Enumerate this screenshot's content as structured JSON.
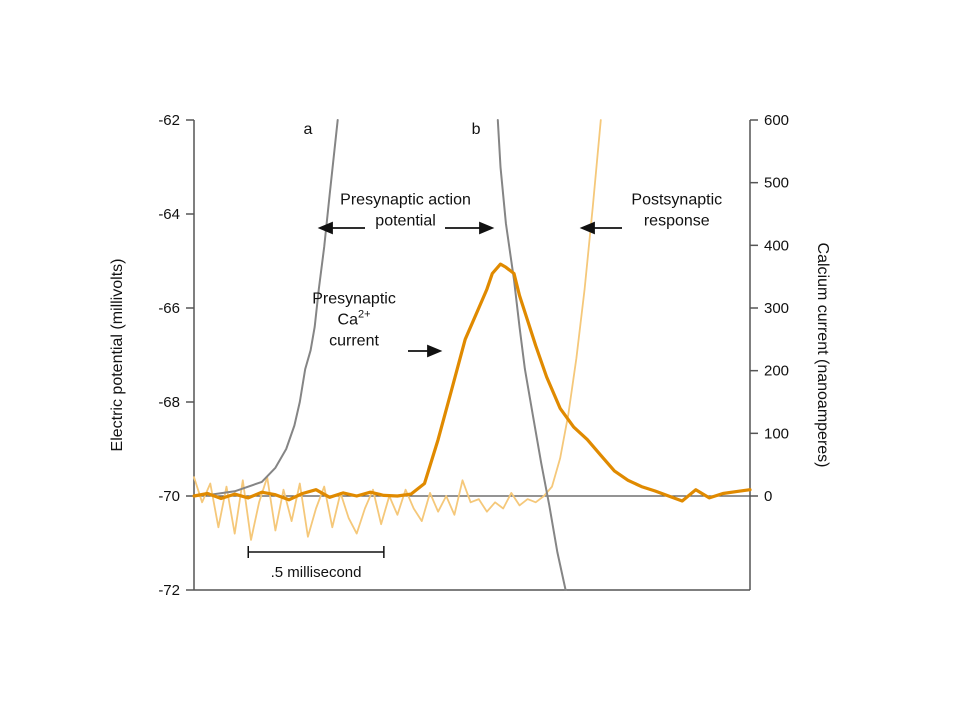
{
  "chart_data": {
    "type": "line",
    "title": "",
    "ylabel_left": "Electric potential (millivolts)",
    "ylabel_right": "Calcium current (nanoamperes)",
    "xlabel": "",
    "xlim_ms": [
      0,
      2.05
    ],
    "ylim_left": [
      -72,
      -62
    ],
    "ylim_right": [
      -150,
      600
    ],
    "left_ticks": [
      -62,
      -64,
      -66,
      -68,
      -70,
      -72
    ],
    "right_ticks": [
      600,
      500,
      400,
      300,
      200,
      100,
      0
    ],
    "grid": false,
    "zero_line": true,
    "scale_bar": {
      "label": ".5 millisecond",
      "start_ms": 0.2,
      "length_ms": 0.5
    },
    "colors": {
      "action_potential": "#858585",
      "ca_current": "#e08a00",
      "postsynaptic": "#f5c87a",
      "axes": "#555555"
    },
    "series": [
      {
        "label": "a",
        "axis": "left",
        "x": [
          0.05,
          0.15,
          0.25,
          0.3,
          0.34,
          0.37,
          0.39,
          0.41,
          0.43,
          0.445,
          0.46,
          0.48,
          0.5,
          0.53
        ],
        "y": [
          -69.98,
          -69.9,
          -69.7,
          -69.4,
          -69.0,
          -68.5,
          -68.0,
          -67.3,
          -66.9,
          -66.4,
          -65.6,
          -64.7,
          -63.6,
          -62.0
        ]
      },
      {
        "label": "b",
        "axis": "left",
        "x": [
          1.12,
          1.13,
          1.15,
          1.18,
          1.2,
          1.22,
          1.25,
          1.28,
          1.31,
          1.34,
          1.37
        ],
        "y": [
          -62.0,
          -63.0,
          -64.2,
          -65.4,
          -66.4,
          -67.3,
          -68.3,
          -69.3,
          -70.2,
          -71.2,
          -72.0
        ]
      },
      {
        "label": "Presynaptic Ca2+ current",
        "axis": "right",
        "x": [
          0.0,
          0.05,
          0.1,
          0.15,
          0.2,
          0.25,
          0.3,
          0.35,
          0.4,
          0.45,
          0.5,
          0.55,
          0.6,
          0.65,
          0.7,
          0.75,
          0.8,
          0.85,
          0.9,
          0.95,
          1.0,
          1.05,
          1.08,
          1.1,
          1.13,
          1.15,
          1.18,
          1.2,
          1.23,
          1.26,
          1.3,
          1.35,
          1.4,
          1.45,
          1.5,
          1.55,
          1.6,
          1.65,
          1.7,
          1.75,
          1.8,
          1.85,
          1.9,
          1.95,
          2.0,
          2.05
        ],
        "y": [
          0,
          4,
          -4,
          3,
          -3,
          6,
          2,
          -6,
          4,
          10,
          -2,
          5,
          0,
          6,
          1,
          0,
          3,
          20,
          90,
          170,
          250,
          300,
          330,
          355,
          370,
          365,
          355,
          320,
          280,
          240,
          190,
          140,
          110,
          90,
          65,
          40,
          25,
          15,
          8,
          0,
          -8,
          10,
          -3,
          4,
          7,
          10
        ]
      },
      {
        "label": "Postsynaptic response",
        "axis": "right",
        "x": [
          0.0,
          0.03,
          0.06,
          0.09,
          0.12,
          0.15,
          0.18,
          0.21,
          0.24,
          0.27,
          0.3,
          0.33,
          0.36,
          0.39,
          0.42,
          0.45,
          0.48,
          0.51,
          0.54,
          0.57,
          0.6,
          0.63,
          0.66,
          0.69,
          0.72,
          0.75,
          0.78,
          0.81,
          0.84,
          0.87,
          0.9,
          0.93,
          0.96,
          0.99,
          1.02,
          1.05,
          1.08,
          1.11,
          1.14,
          1.17,
          1.2,
          1.23,
          1.26,
          1.29,
          1.32,
          1.35,
          1.38,
          1.41,
          1.44,
          1.47,
          1.5
        ],
        "y": [
          30,
          -10,
          20,
          -50,
          15,
          -60,
          25,
          -70,
          -10,
          30,
          -55,
          10,
          -40,
          20,
          -65,
          -20,
          15,
          -50,
          5,
          -35,
          -60,
          -20,
          10,
          -45,
          0,
          -30,
          10,
          -20,
          -40,
          5,
          -25,
          0,
          -30,
          25,
          -10,
          -5,
          -25,
          -10,
          -20,
          5,
          -15,
          -5,
          -10,
          0,
          15,
          60,
          130,
          220,
          330,
          460,
          600
        ]
      }
    ],
    "annotations": [
      {
        "text": "a",
        "x": 0.42,
        "y_left": -62.3
      },
      {
        "text": "b",
        "x": 1.04,
        "y_left": -62.3
      },
      {
        "lines": [
          "Presynaptic action",
          "potential"
        ],
        "x": 0.78,
        "y_left": -63.8
      },
      {
        "lines": [
          "Postsynaptic",
          "response"
        ],
        "x": 1.78,
        "y_left": -63.8
      },
      {
        "lines": [
          "Presynaptic",
          "Ca2+",
          "current"
        ],
        "x": 0.59,
        "y_left": -65.9
      }
    ]
  }
}
